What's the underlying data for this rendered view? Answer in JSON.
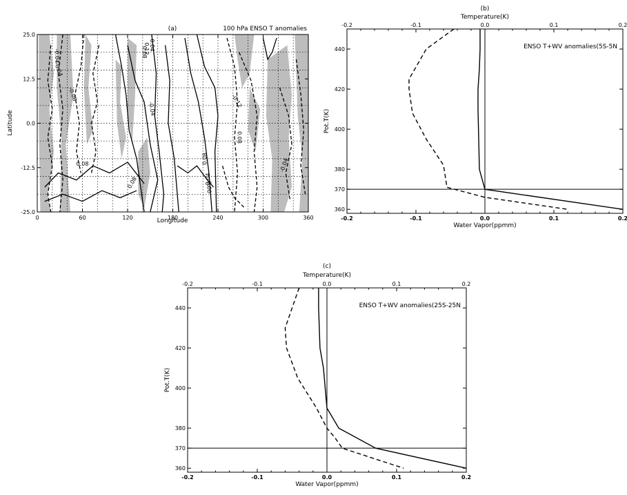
{
  "chart_data": [
    {
      "panel": "(a)",
      "type": "contour",
      "title": "100 hPa ENSO T anomalies",
      "xlabel": "Longitude",
      "ylabel": "Latitude",
      "xlim": [
        0,
        360
      ],
      "ylim": [
        -25,
        25
      ],
      "xticks": [
        "0",
        "60",
        "120",
        "180",
        "240",
        "300",
        "360"
      ],
      "yticks": [
        "-25.0",
        "-12.5",
        "0.0",
        "12.5",
        "25.0"
      ],
      "grid": true,
      "contour_labels": [
        "-0.04",
        "-0.04",
        "-0.08",
        "0.08",
        "0.08",
        "0.12",
        "-0.04",
        "-0.12",
        "0.08",
        "0.08",
        "-0.04",
        "-0.04",
        "0.00",
        "0.08",
        "0.04"
      ],
      "contours": [
        {
          "style": "dashed",
          "points": [
            [
              18,
              22
            ],
            [
              14,
              12
            ],
            [
              20,
              4
            ],
            [
              14,
              -4
            ],
            [
              20,
              -12
            ],
            [
              14,
              -20
            ],
            [
              18,
              -25
            ]
          ]
        },
        {
          "style": "dashed",
          "points": [
            [
              34,
              25
            ],
            [
              28,
              14
            ],
            [
              34,
              4
            ],
            [
              30,
              -6
            ],
            [
              34,
              -16
            ],
            [
              30,
              -25
            ]
          ]
        },
        {
          "style": "dashed",
          "points": [
            [
              62,
              25
            ],
            [
              58,
              16
            ],
            [
              50,
              8
            ],
            [
              56,
              0
            ],
            [
              52,
              -8
            ],
            [
              58,
              -14
            ]
          ]
        },
        {
          "style": "dashed",
          "points": [
            [
              82,
              22
            ],
            [
              74,
              14
            ],
            [
              80,
              6
            ],
            [
              72,
              0
            ],
            [
              78,
              -8
            ],
            [
              72,
              -14
            ]
          ]
        },
        {
          "style": "solid",
          "points": [
            [
              10,
              -18
            ],
            [
              28,
              -14
            ],
            [
              52,
              -16
            ],
            [
              74,
              -12
            ],
            [
              96,
              -14
            ],
            [
              120,
              -11
            ],
            [
              142,
              -17
            ]
          ]
        },
        {
          "style": "solid",
          "points": [
            [
              10,
              -22
            ],
            [
              34,
              -20
            ],
            [
              60,
              -22
            ],
            [
              86,
              -19
            ],
            [
              110,
              -21
            ],
            [
              132,
              -19
            ]
          ]
        },
        {
          "style": "solid",
          "points": [
            [
              104,
              25
            ],
            [
              112,
              16
            ],
            [
              118,
              8
            ],
            [
              122,
              -2
            ],
            [
              132,
              -10
            ],
            [
              140,
              -22
            ],
            [
              142,
              -25
            ]
          ]
        },
        {
          "style": "solid",
          "points": [
            [
              120,
              22
            ],
            [
              130,
              12
            ],
            [
              142,
              6
            ],
            [
              150,
              -6
            ],
            [
              160,
              -16
            ],
            [
              150,
              -25
            ]
          ]
        },
        {
          "style": "solid",
          "points": [
            [
              152,
              25
            ],
            [
              158,
              14
            ],
            [
              156,
              2
            ],
            [
              162,
              -8
            ],
            [
              168,
              -20
            ],
            [
              166,
              -25
            ]
          ]
        },
        {
          "style": "solid",
          "points": [
            [
              170,
              22
            ],
            [
              176,
              12
            ],
            [
              174,
              0
            ],
            [
              182,
              -10
            ],
            [
              188,
              -25
            ]
          ]
        },
        {
          "style": "solid",
          "points": [
            [
              196,
              24
            ],
            [
              204,
              14
            ],
            [
              214,
              6
            ],
            [
              222,
              -4
            ],
            [
              228,
              -14
            ],
            [
              232,
              -25
            ]
          ]
        },
        {
          "style": "solid",
          "points": [
            [
              212,
              25
            ],
            [
              222,
              16
            ],
            [
              236,
              10
            ],
            [
              240,
              2
            ],
            [
              236,
              -8
            ],
            [
              238,
              -25
            ]
          ]
        },
        {
          "style": "solid",
          "points": [
            [
              186,
              -12
            ],
            [
              200,
              -14
            ],
            [
              212,
              -12
            ],
            [
              226,
              -16
            ],
            [
              234,
              -18
            ]
          ]
        },
        {
          "style": "dashed",
          "points": [
            [
              252,
              24
            ],
            [
              262,
              16
            ],
            [
              266,
              6
            ],
            [
              262,
              -4
            ],
            [
              266,
              -14
            ],
            [
              262,
              -25
            ]
          ]
        },
        {
          "style": "dashed",
          "points": [
            [
              268,
              20
            ],
            [
              284,
              12
            ],
            [
              292,
              2
            ],
            [
              288,
              -8
            ],
            [
              292,
              -18
            ],
            [
              288,
              -25
            ]
          ]
        },
        {
          "style": "dashed",
          "points": [
            [
              246,
              -12
            ],
            [
              254,
              -18
            ],
            [
              262,
              -21
            ],
            [
              276,
              -24
            ]
          ]
        },
        {
          "style": "dashed",
          "points": [
            [
              322,
              10
            ],
            [
              334,
              2
            ],
            [
              338,
              -6
            ],
            [
              330,
              -14
            ],
            [
              336,
              -22
            ]
          ]
        },
        {
          "style": "dashed",
          "points": [
            [
              344,
              18
            ],
            [
              350,
              8
            ],
            [
              354,
              -2
            ],
            [
              350,
              -12
            ],
            [
              356,
              -20
            ]
          ]
        },
        {
          "style": "solid",
          "points": [
            [
              300,
              24
            ],
            [
              306,
              18
            ],
            [
              312,
              20
            ],
            [
              318,
              24
            ]
          ]
        }
      ],
      "shaded_regions": [
        {
          "points": [
            [
              2,
              25
            ],
            [
              16,
              25
            ],
            [
              22,
              14
            ],
            [
              16,
              4
            ],
            [
              22,
              -8
            ],
            [
              14,
              -20
            ],
            [
              18,
              -25
            ],
            [
              4,
              -25
            ],
            [
              2,
              0
            ]
          ]
        },
        {
          "points": [
            [
              26,
              25
            ],
            [
              44,
              25
            ],
            [
              48,
              8
            ],
            [
              38,
              -6
            ],
            [
              44,
              -25
            ],
            [
              30,
              -25
            ],
            [
              32,
              -4
            ],
            [
              26,
              10
            ]
          ]
        },
        {
          "points": [
            [
              64,
              25
            ],
            [
              72,
              22
            ],
            [
              68,
              10
            ],
            [
              74,
              -2
            ],
            [
              66,
              -6
            ],
            [
              62,
              10
            ]
          ]
        },
        {
          "points": [
            [
              104,
              18
            ],
            [
              112,
              16
            ],
            [
              110,
              6
            ],
            [
              118,
              -4
            ],
            [
              112,
              -10
            ],
            [
              106,
              0
            ]
          ]
        },
        {
          "points": [
            [
              120,
              24
            ],
            [
              132,
              22
            ],
            [
              130,
              8
            ],
            [
              126,
              -6
            ],
            [
              120,
              4
            ]
          ]
        },
        {
          "points": [
            [
              134,
              -8
            ],
            [
              146,
              -4
            ],
            [
              150,
              -14
            ],
            [
              142,
              -24
            ],
            [
              134,
              -20
            ]
          ]
        },
        {
          "points": [
            [
              262,
              25
            ],
            [
              288,
              25
            ],
            [
              282,
              14
            ],
            [
              272,
              10
            ],
            [
              266,
              18
            ]
          ]
        },
        {
          "points": [
            [
              282,
              10
            ],
            [
              296,
              4
            ],
            [
              290,
              -8
            ],
            [
              280,
              -2
            ]
          ]
        },
        {
          "points": [
            [
              306,
              18
            ],
            [
              332,
              22
            ],
            [
              338,
              8
            ],
            [
              334,
              -4
            ],
            [
              338,
              -18
            ],
            [
              328,
              -25
            ],
            [
              310,
              -25
            ],
            [
              312,
              -10
            ],
            [
              304,
              2
            ]
          ]
        },
        {
          "points": [
            [
              342,
              25
            ],
            [
              360,
              25
            ],
            [
              360,
              -25
            ],
            [
              348,
              -25
            ],
            [
              352,
              -10
            ],
            [
              346,
              2
            ]
          ]
        }
      ]
    },
    {
      "panel": "(b)",
      "type": "line",
      "title": "ENSO T+WV anomalies(5S-5N",
      "xlabel_top": "Temperature(K)",
      "xlabel_bottom": "Water Vapor(ppmm)",
      "ylabel": "Pot.T(K)",
      "xlim": [
        -0.2,
        0.2
      ],
      "ylim": [
        358,
        450
      ],
      "xticks_top": [
        "-0.2",
        "-0.1",
        "0.0",
        "0.1",
        "0.2"
      ],
      "xticks_bottom": [
        "-0.2",
        "-0.1",
        "0.0",
        "0.1",
        "0.2"
      ],
      "yticks": [
        "360",
        "370",
        "380",
        "400",
        "420",
        "440"
      ],
      "reference_lines": {
        "x": 0.0,
        "y": 370
      },
      "series": [
        {
          "style": "solid",
          "x": [
            -0.007,
            -0.007,
            -0.008,
            -0.01,
            -0.01,
            -0.008,
            0.0,
            0.2
          ],
          "y": [
            450,
            440,
            430,
            420,
            410,
            380,
            370,
            360
          ]
        },
        {
          "style": "dashed",
          "x": [
            -0.045,
            -0.085,
            -0.11,
            -0.11,
            -0.105,
            -0.085,
            -0.06,
            -0.055,
            0.0,
            0.12
          ],
          "y": [
            450,
            440,
            425,
            420,
            408,
            395,
            382,
            371,
            366,
            360
          ]
        }
      ]
    },
    {
      "panel": "(c)",
      "type": "line",
      "title": "ENSO T+WV anomalies(25S-25N",
      "xlabel_top": "Temperature(K)",
      "xlabel_bottom": "Water Vapor(ppmm)",
      "ylabel": "Pot.T(K)",
      "xlim": [
        -0.2,
        0.2
      ],
      "ylim": [
        358,
        450
      ],
      "xticks_top": [
        "-0.2",
        "-0.1",
        "0.0",
        "0.1",
        "0.2"
      ],
      "xticks_bottom": [
        "-0.2",
        "-0.1",
        "0.0",
        "0.1",
        "0.2"
      ],
      "yticks": [
        "360",
        "370",
        "380",
        "400",
        "420",
        "440"
      ],
      "reference_lines": {
        "x": 0.0,
        "y": 370
      },
      "series": [
        {
          "style": "solid",
          "x": [
            -0.012,
            -0.012,
            -0.01,
            -0.005,
            0.0,
            0.017,
            0.07,
            0.2
          ],
          "y": [
            450,
            440,
            420,
            410,
            390,
            380,
            370,
            360
          ]
        },
        {
          "style": "dashed",
          "x": [
            -0.04,
            -0.06,
            -0.058,
            -0.042,
            -0.015,
            0.0,
            0.012,
            0.022,
            0.11
          ],
          "y": [
            450,
            430,
            420,
            405,
            390,
            380,
            375,
            370,
            360
          ]
        }
      ]
    }
  ]
}
